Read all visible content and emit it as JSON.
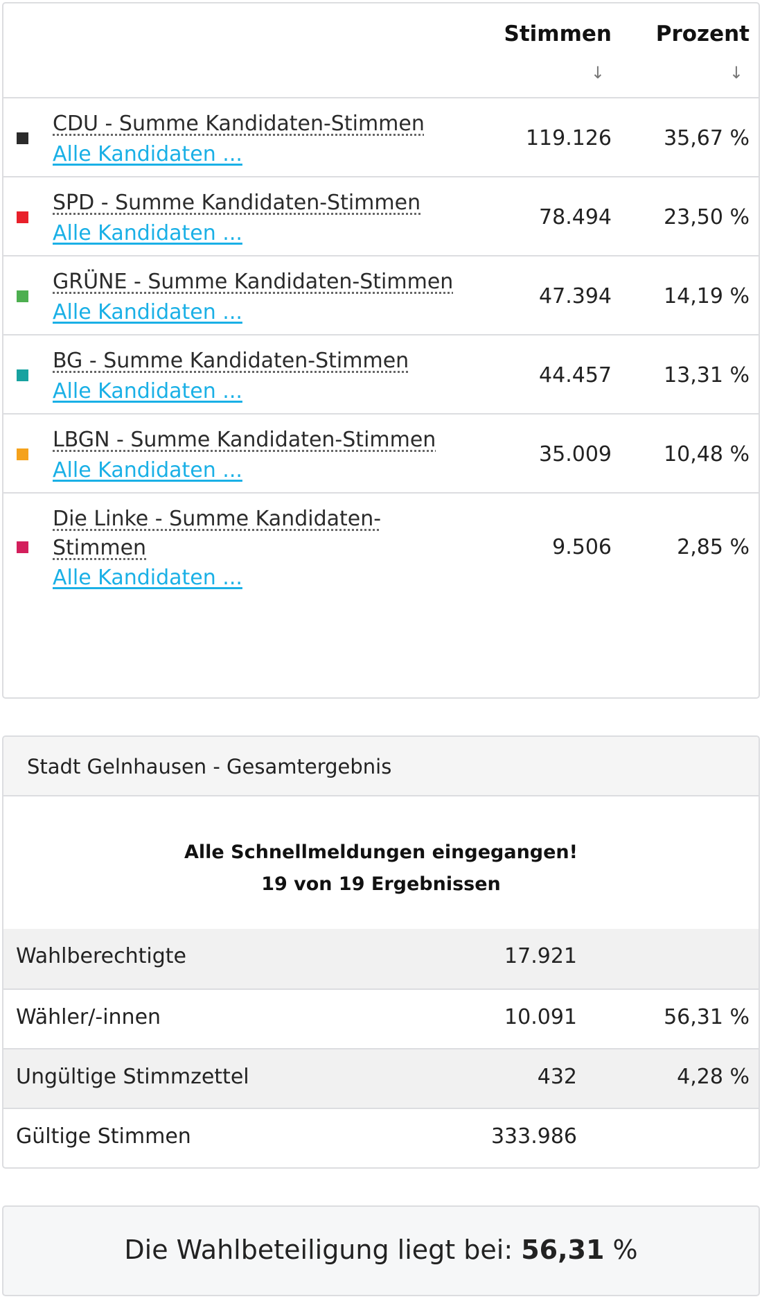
{
  "table": {
    "col_votes": "Stimmen",
    "col_percent": "Prozent",
    "sort_icon": "↓",
    "rows": [
      {
        "party": "CDU - Summe Kandidaten-Stimmen",
        "link": "Alle Kandidaten ...",
        "votes": "119.126",
        "percent": "35,67 %",
        "color": "#2b2b2b"
      },
      {
        "party": "SPD - Summe Kandidaten-Stimmen",
        "link": "Alle Kandidaten ...",
        "votes": "78.494",
        "percent": "23,50 %",
        "color": "#e8202a"
      },
      {
        "party": "GRÜNE - Summe Kandidaten-Stimmen",
        "link": "Alle Kandidaten ...",
        "votes": "47.394",
        "percent": "14,19 %",
        "color": "#4daf50"
      },
      {
        "party": "BG - Summe Kandidaten-Stimmen",
        "link": "Alle Kandidaten ...",
        "votes": "44.457",
        "percent": "13,31 %",
        "color": "#17a2a0"
      },
      {
        "party": "LBGN - Summe Kandidaten-Stimmen",
        "link": "Alle Kandidaten ...",
        "votes": "35.009",
        "percent": "10,48 %",
        "color": "#f5a21c"
      },
      {
        "party_line1": "Die Linke - Summe Kandidaten-",
        "party_line2": "Stimmen",
        "link": "Alle Kandidaten ...",
        "votes": "9.506",
        "percent": "2,85 %",
        "color": "#d31f5c"
      }
    ]
  },
  "summary": {
    "title": "Stadt Gelnhausen - Gesamtergebnis",
    "status_line1": "Alle Schnellmeldungen eingegangen!",
    "status_line2": "19 von 19 Ergebnissen",
    "rows": [
      {
        "label": "Wahlberechtigte",
        "value": "17.921",
        "percent": ""
      },
      {
        "label": "Wähler/-innen",
        "value": "10.091",
        "percent": "56,31 %"
      },
      {
        "label": "Ungültige Stimmzettel",
        "value": "432",
        "percent": "4,28 %"
      },
      {
        "label": "Gültige Stimmen",
        "value": "333.986",
        "percent": ""
      }
    ]
  },
  "turnout": {
    "prefix": "Die Wahlbeteiligung liegt bei: ",
    "value": "56,31",
    "suffix": " %"
  }
}
